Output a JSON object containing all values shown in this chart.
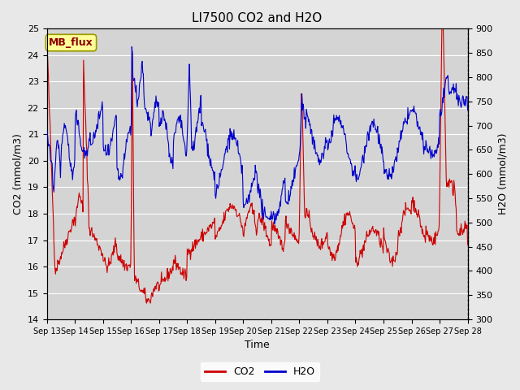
{
  "title": "LI7500 CO2 and H2O",
  "xlabel": "Time",
  "ylabel_left": "CO2 (mmol/m3)",
  "ylabel_right": "H2O (mmol/m3)",
  "ylim_left": [
    14.0,
    25.0
  ],
  "ylim_right": [
    300,
    900
  ],
  "yticks_left": [
    14.0,
    15.0,
    16.0,
    17.0,
    18.0,
    19.0,
    20.0,
    21.0,
    22.0,
    23.0,
    24.0,
    25.0
  ],
  "yticks_right": [
    300,
    350,
    400,
    450,
    500,
    550,
    600,
    650,
    700,
    750,
    800,
    850,
    900
  ],
  "xtick_labels": [
    "Sep 13",
    "Sep 14",
    "Sep 15",
    "Sep 16",
    "Sep 17",
    "Sep 18",
    "Sep 19",
    "Sep 20",
    "Sep 21",
    "Sep 22",
    "Sep 23",
    "Sep 24",
    "Sep 25",
    "Sep 26",
    "Sep 27",
    "Sep 28"
  ],
  "background_color": "#e8e8e8",
  "plot_bg_color": "#d4d4d4",
  "grid_color": "#ffffff",
  "co2_color": "#cc0000",
  "h2o_color": "#0000cc",
  "annotation_text": "MB_flux",
  "annotation_bg": "#ffff99",
  "annotation_border": "#999900",
  "legend_co2": "CO2",
  "legend_h2o": "H2O"
}
